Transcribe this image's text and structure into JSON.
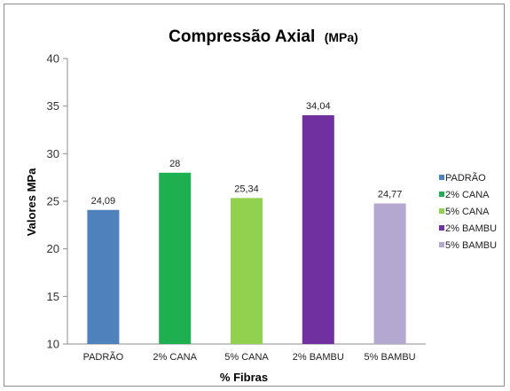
{
  "chart_data": {
    "type": "bar",
    "title": "Compressão Axial",
    "title_unit": "(MPa)",
    "xlabel": "% Fibras",
    "ylabel": "Valores MPa",
    "ylim": [
      10,
      40
    ],
    "yticks": [
      10,
      15,
      20,
      25,
      30,
      35,
      40
    ],
    "grid": false,
    "legend_position": "right",
    "categories": [
      "PADRÃO",
      "2% CANA",
      "5% CANA",
      "2% BAMBU",
      "5% BAMBU"
    ],
    "values": [
      24.09,
      28,
      25.34,
      34.04,
      24.77
    ],
    "data_labels": [
      "24,09",
      "28",
      "25,34",
      "34,04",
      "24,77"
    ],
    "colors": [
      "#4f81bd",
      "#1eb050",
      "#92d050",
      "#7030a0",
      "#b4a7d0"
    ],
    "legend": [
      "PADRÃO",
      "2% CANA",
      "5% CANA",
      "2% BAMBU",
      "5% BAMBU"
    ]
  }
}
